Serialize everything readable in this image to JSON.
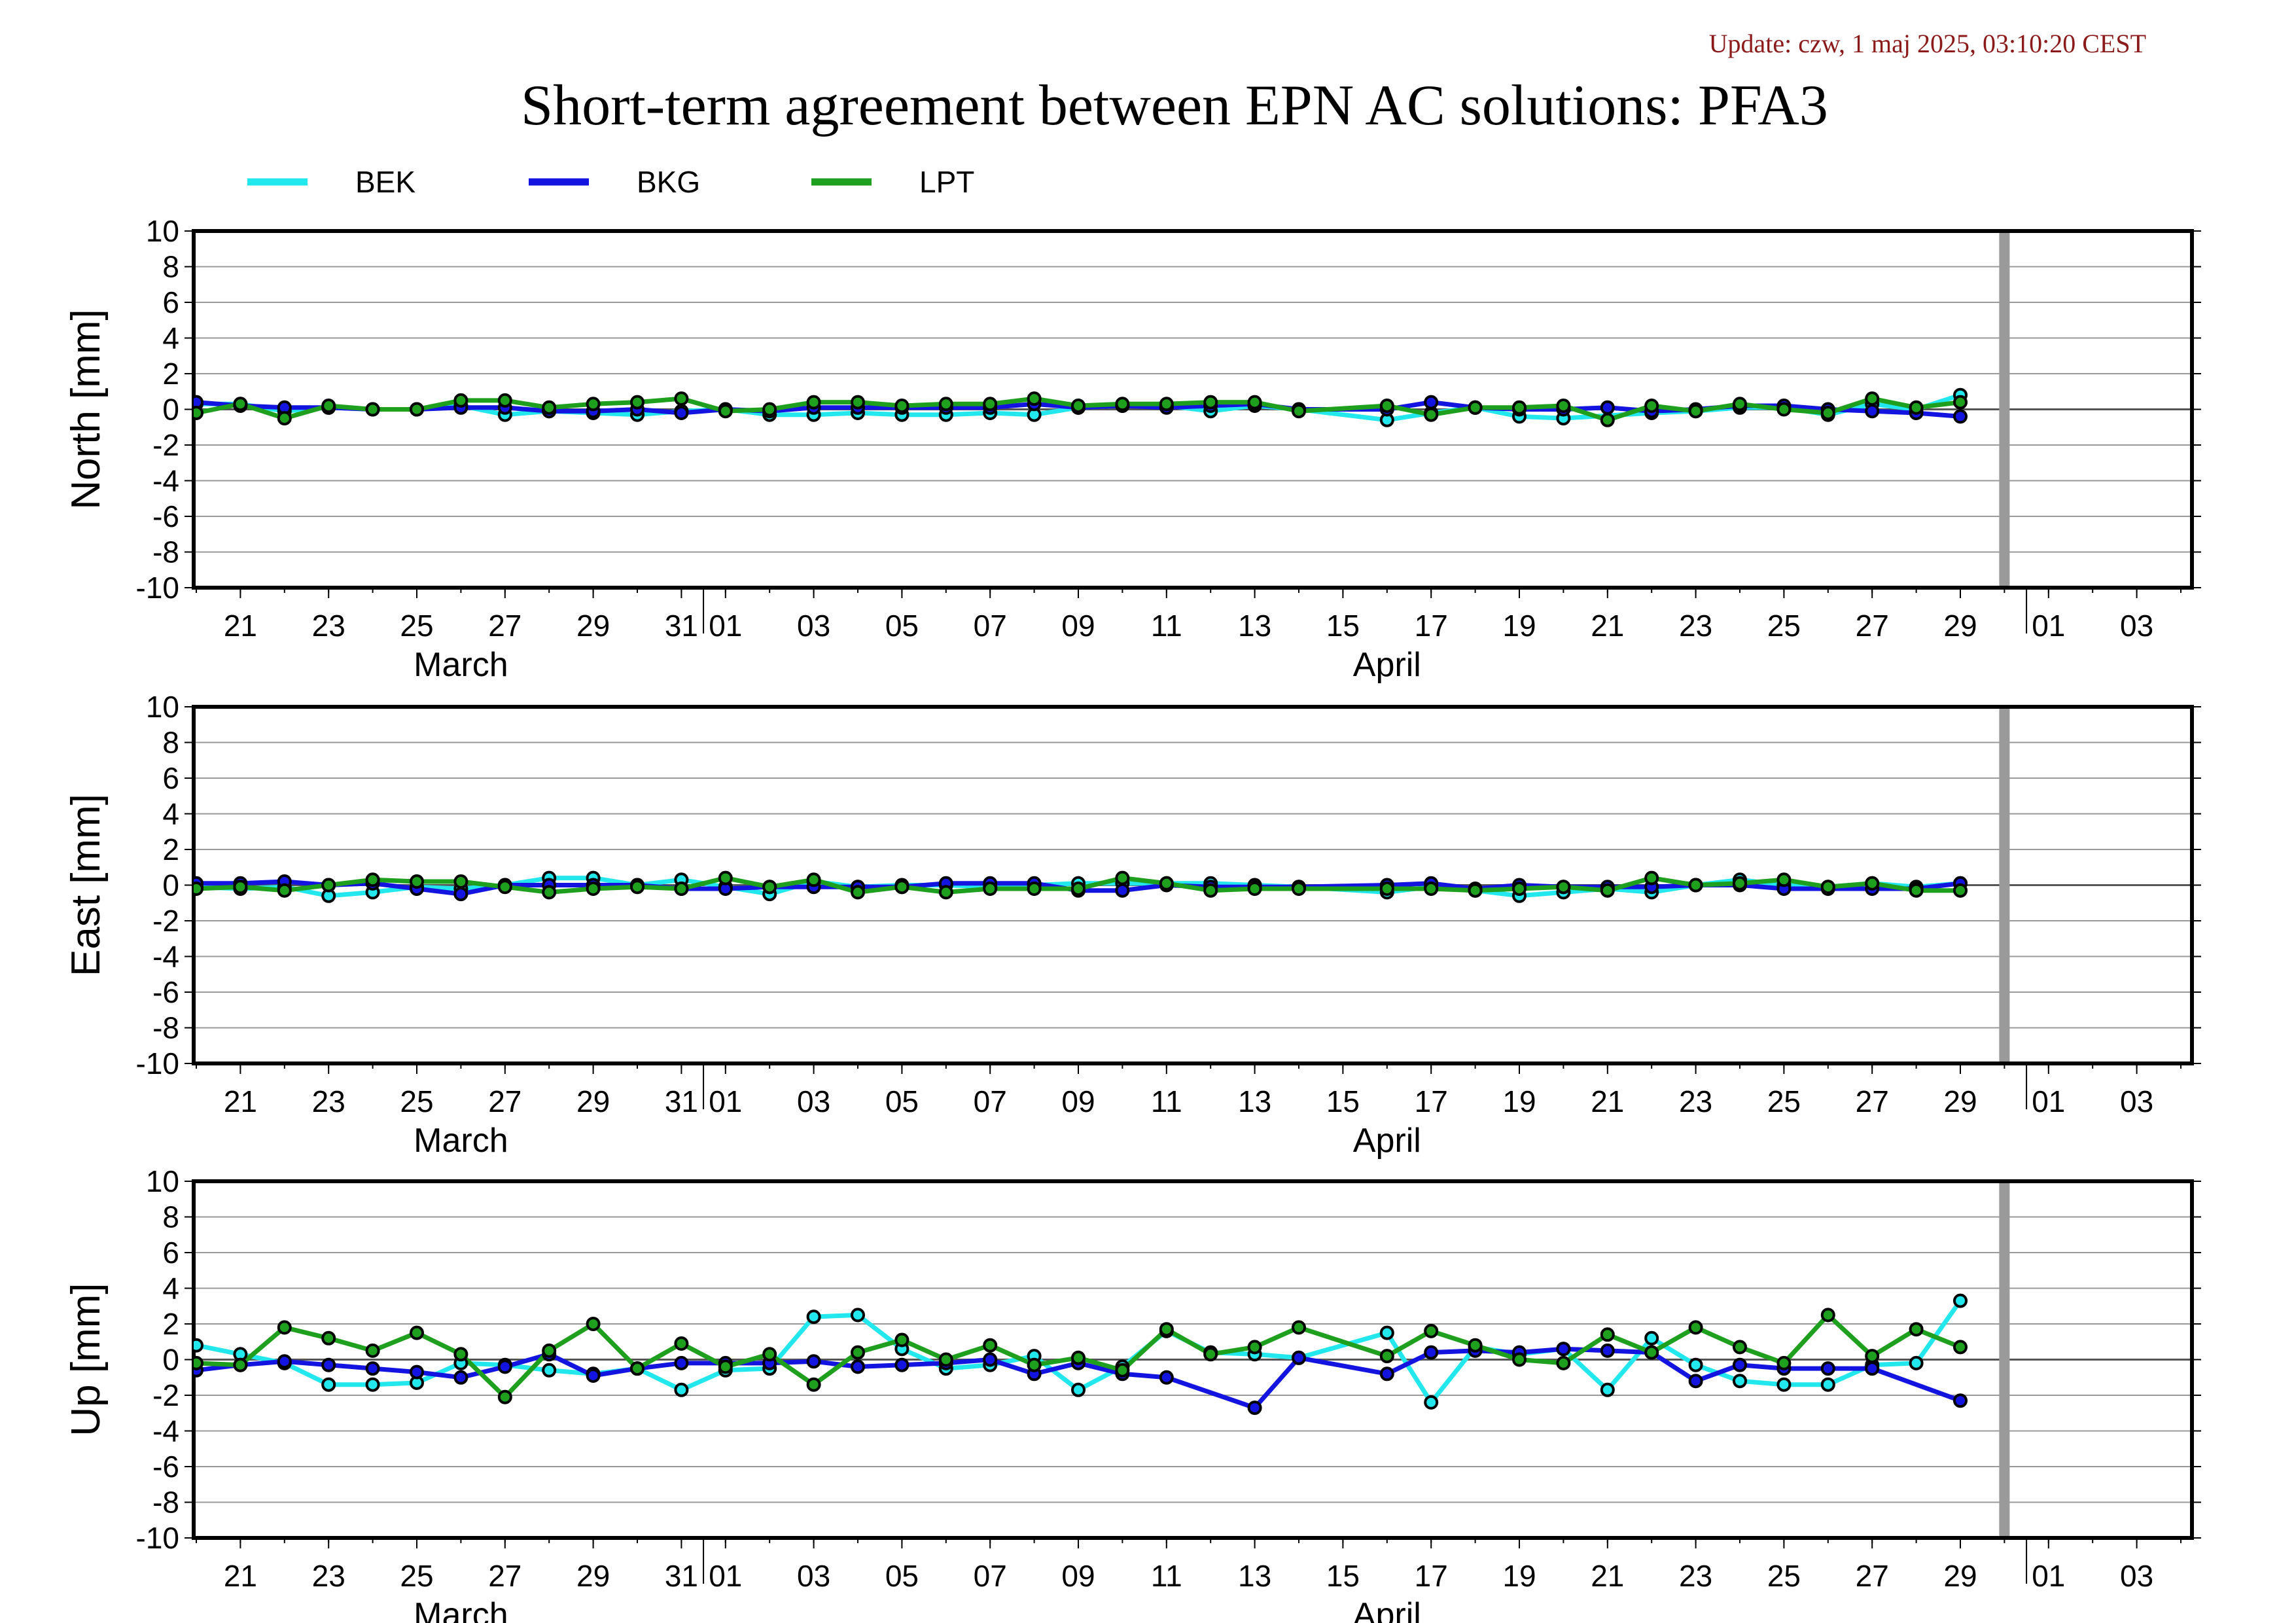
{
  "update_text": "Update: czw, 1 maj 2025, 03:10:20 CEST",
  "chart_data": {
    "type": "line",
    "title": "Short-term agreement between EPN AC solutions: PFA3",
    "legend": [
      {
        "name": "BEK",
        "color": "#22e8ee"
      },
      {
        "name": "BKG",
        "color": "#1414e0"
      },
      {
        "name": "LPT",
        "color": "#1ea01e"
      }
    ],
    "legend_position": "top-left",
    "x_days": [
      "2025-03-20",
      "2025-03-21",
      "2025-03-22",
      "2025-03-23",
      "2025-03-24",
      "2025-03-25",
      "2025-03-26",
      "2025-03-27",
      "2025-03-28",
      "2025-03-29",
      "2025-03-30",
      "2025-03-31",
      "2025-04-01",
      "2025-04-02",
      "2025-04-03",
      "2025-04-04",
      "2025-04-05",
      "2025-04-06",
      "2025-04-07",
      "2025-04-08",
      "2025-04-09",
      "2025-04-10",
      "2025-04-11",
      "2025-04-12",
      "2025-04-13",
      "2025-04-14",
      "2025-04-15",
      "2025-04-16",
      "2025-04-17",
      "2025-04-18",
      "2025-04-19",
      "2025-04-20",
      "2025-04-21",
      "2025-04-22",
      "2025-04-23",
      "2025-04-24",
      "2025-04-25",
      "2025-04-26",
      "2025-04-27",
      "2025-04-28",
      "2025-04-29"
    ],
    "x_ticks": [
      "21",
      "23",
      "25",
      "27",
      "29",
      "31",
      "01",
      "03",
      "05",
      "07",
      "09",
      "11",
      "13",
      "15",
      "17",
      "19",
      "21",
      "23",
      "25",
      "27",
      "29",
      "01",
      "03"
    ],
    "months": [
      "March",
      "April"
    ],
    "grid": true,
    "today_marker": "2025-04-30",
    "ylim": [
      -10,
      10
    ],
    "y_ticks": [
      "10",
      "8",
      "6",
      "4",
      "2",
      "0",
      "-2",
      "-4",
      "-6",
      "-8",
      "-10"
    ],
    "panels": [
      {
        "ylabel": "North [mm]",
        "series": [
          {
            "name": "BEK",
            "values": [
              0.3,
              0.3,
              -0.1,
              0.1,
              0,
              0,
              0.2,
              -0.3,
              -0.1,
              -0.2,
              -0.3,
              -0.1,
              0,
              -0.3,
              -0.3,
              -0.2,
              -0.3,
              -0.3,
              -0.2,
              -0.3,
              0.1,
              0.2,
              0.2,
              -0.1,
              0.2,
              0,
              null,
              -0.6,
              -0.2,
              0.1,
              -0.4,
              -0.5,
              null,
              -0.2,
              -0.1,
              0.1,
              0.1,
              -0.3,
              0.3,
              0,
              0.8
            ]
          },
          {
            "name": "BKG",
            "values": [
              0.4,
              0.2,
              0.1,
              0.1,
              0,
              0,
              0.1,
              0.1,
              -0.1,
              -0.1,
              0,
              -0.2,
              0,
              -0.1,
              0.1,
              0.1,
              0.1,
              0.1,
              0.1,
              0.3,
              0.1,
              0.2,
              0.1,
              0.2,
              0.3,
              0,
              null,
              0,
              0.4,
              0.1,
              0,
              0,
              0.1,
              -0.1,
              0,
              0.2,
              0.2,
              0,
              -0.1,
              -0.2,
              -0.4
            ]
          },
          {
            "name": "LPT",
            "values": [
              -0.2,
              0.3,
              -0.5,
              0.2,
              0,
              0,
              0.5,
              0.5,
              0.1,
              0.3,
              0.4,
              0.6,
              -0.1,
              0,
              0.4,
              0.4,
              0.2,
              0.3,
              0.3,
              0.6,
              0.2,
              0.3,
              0.3,
              0.4,
              0.4,
              -0.1,
              null,
              0.2,
              -0.3,
              0.1,
              0.1,
              0.2,
              -0.6,
              0.2,
              -0.1,
              0.3,
              0,
              -0.2,
              0.6,
              0.1,
              0.4
            ]
          }
        ]
      },
      {
        "ylabel": "East [mm]",
        "series": [
          {
            "name": "BEK",
            "values": [
              -0.1,
              -0.2,
              -0.1,
              -0.6,
              -0.4,
              -0.1,
              -0.2,
              0,
              0.4,
              0.4,
              0,
              0.3,
              -0.1,
              -0.5,
              0.2,
              -0.1,
              0,
              0,
              -0.1,
              0,
              0.1,
              0.1,
              0.1,
              0.1,
              0,
              -0.1,
              null,
              -0.4,
              -0.1,
              -0.3,
              -0.6,
              -0.4,
              -0.2,
              -0.4,
              0,
              0.3,
              0,
              -0.1,
              0.1,
              -0.1,
              0.1
            ]
          },
          {
            "name": "BKG",
            "values": [
              0.1,
              0.1,
              0.2,
              0,
              0.1,
              -0.2,
              -0.5,
              0,
              0,
              0,
              0,
              -0.2,
              -0.2,
              -0.1,
              -0.1,
              -0.1,
              -0.1,
              0.1,
              0.1,
              0.1,
              -0.3,
              -0.3,
              0,
              -0.1,
              -0.1,
              -0.1,
              null,
              0,
              0.1,
              -0.2,
              0,
              -0.1,
              -0.1,
              -0.1,
              0,
              0,
              -0.2,
              -0.2,
              -0.2,
              -0.2,
              0.1
            ]
          },
          {
            "name": "LPT",
            "values": [
              -0.2,
              -0.1,
              -0.3,
              0,
              0.3,
              0.2,
              0.2,
              -0.1,
              -0.4,
              -0.2,
              -0.1,
              -0.2,
              0.4,
              -0.1,
              0.3,
              -0.4,
              -0.1,
              -0.4,
              -0.2,
              -0.2,
              -0.2,
              0.4,
              0.1,
              -0.3,
              -0.2,
              -0.2,
              null,
              -0.2,
              -0.2,
              -0.3,
              -0.2,
              -0.1,
              -0.3,
              0.4,
              0,
              0.1,
              0.3,
              -0.1,
              0.1,
              -0.3,
              -0.3
            ]
          }
        ]
      },
      {
        "ylabel": "Up [mm]",
        "series": [
          {
            "name": "BEK",
            "values": [
              0.8,
              0.3,
              -0.2,
              -1.4,
              -1.4,
              -1.3,
              -0.2,
              -0.3,
              -0.6,
              -0.8,
              -0.5,
              -1.7,
              -0.6,
              -0.5,
              2.4,
              2.5,
              0.6,
              -0.5,
              -0.3,
              0.2,
              -1.7,
              -0.4,
              1.6,
              0.4,
              0.3,
              0.1,
              null,
              1.5,
              -2.4,
              0.7,
              0.3,
              0.6,
              -1.7,
              1.2,
              -0.3,
              -1.2,
              -1.4,
              -1.4,
              -0.3,
              -0.2,
              3.3
            ]
          },
          {
            "name": "BKG",
            "values": [
              -0.6,
              -0.3,
              -0.1,
              -0.3,
              -0.5,
              -0.7,
              -1,
              -0.4,
              0.3,
              -0.9,
              -0.5,
              -0.2,
              -0.2,
              -0.2,
              -0.1,
              -0.4,
              -0.3,
              -0.2,
              0,
              -0.8,
              -0.2,
              -0.8,
              -1,
              null,
              -2.7,
              0.1,
              null,
              -0.8,
              0.4,
              0.5,
              0.4,
              0.6,
              0.5,
              0.4,
              -1.2,
              -0.3,
              -0.5,
              -0.5,
              -0.5,
              null,
              -2.3
            ]
          },
          {
            "name": "LPT",
            "values": [
              -0.2,
              -0.3,
              1.8,
              1.2,
              0.5,
              1.5,
              0.3,
              -2.1,
              0.5,
              2,
              -0.5,
              0.9,
              -0.4,
              0.3,
              -1.4,
              0.4,
              1.1,
              0,
              0.8,
              -0.3,
              0.1,
              -0.6,
              1.7,
              0.3,
              0.7,
              1.8,
              null,
              0.2,
              1.6,
              0.8,
              0,
              -0.2,
              1.4,
              0.4,
              1.8,
              0.7,
              -0.2,
              2.5,
              0.2,
              1.7,
              0.7
            ]
          }
        ]
      }
    ]
  }
}
